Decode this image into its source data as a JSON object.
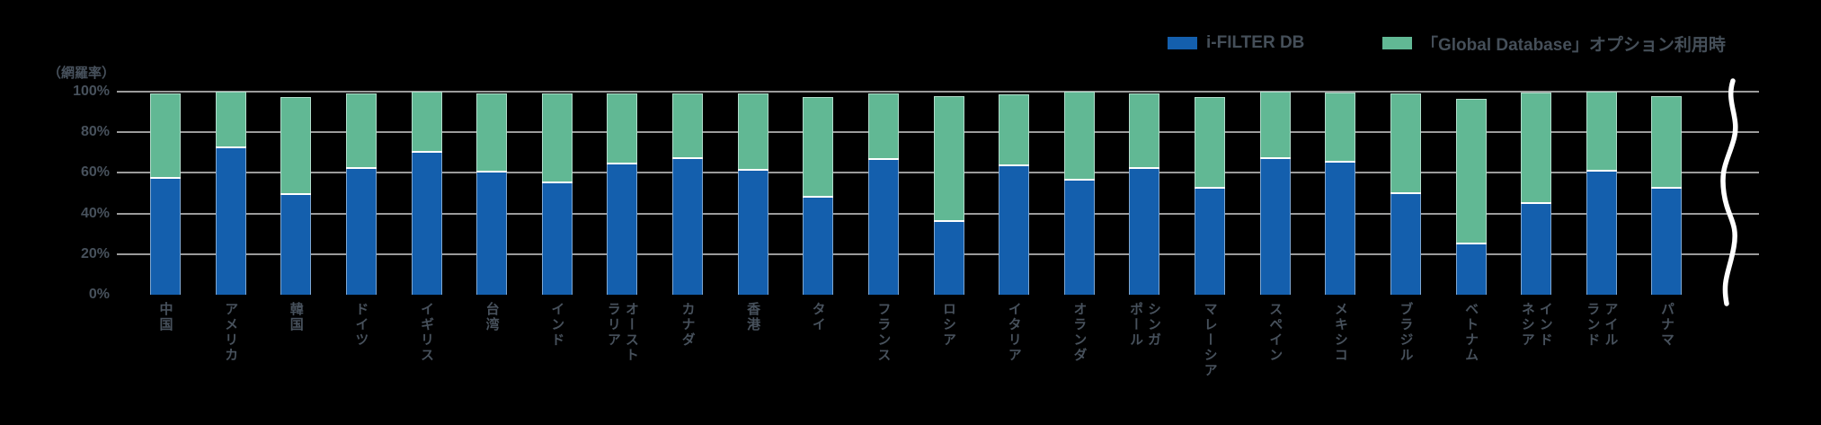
{
  "y_axis_title": "（網羅率）",
  "legend": {
    "items": [
      {
        "label": "i-FILTER DB",
        "color": "#145fad"
      },
      {
        "label": "「Global Database」オプション利用時",
        "color": "#61b894"
      }
    ]
  },
  "colors": {
    "background": "#000000",
    "gridline": "#9b9b9b",
    "text": "#47515c",
    "segment_divider": "#ffffff",
    "break_line": "#ffffff",
    "blue": "#145fad",
    "green": "#61b894"
  },
  "chart_data": {
    "type": "bar",
    "stacked": true,
    "orientation": "vertical",
    "title": "",
    "xlabel": "",
    "ylabel": "（網羅率）",
    "ylim": [
      0,
      100
    ],
    "ytick_labels": [
      "0%",
      "20%",
      "40%",
      "60%",
      "80%",
      "100%"
    ],
    "gridlines_at_percent": [
      20,
      40,
      60,
      80,
      100
    ],
    "grid": true,
    "legend_position": "top-right",
    "axis_break_at_right": true,
    "categories": [
      "中国",
      "アメリカ",
      "韓国",
      "ドイツ",
      "イギリス",
      "台湾",
      "インド",
      "オーストラリア",
      "カナダ",
      "香港",
      "タイ",
      "フランス",
      "ロシア",
      "イタリア",
      "オランダ",
      "シンガポール",
      "マレーシア",
      "スペイン",
      "メキシコ",
      "ブラジル",
      "ベトナム",
      "インドネシア",
      "アイルランド",
      "パナマ"
    ],
    "category_label_columns": [
      [
        "中国"
      ],
      [
        "アメリカ"
      ],
      [
        "韓国"
      ],
      [
        "ドイツ"
      ],
      [
        "イギリス"
      ],
      [
        "台湾"
      ],
      [
        "インド"
      ],
      [
        "オースト",
        "ラリア"
      ],
      [
        "カナダ"
      ],
      [
        "香港"
      ],
      [
        "タイ"
      ],
      [
        "フランス"
      ],
      [
        "ロシア"
      ],
      [
        "イタリア"
      ],
      [
        "オランダ"
      ],
      [
        "シンガ",
        "ポール"
      ],
      [
        "マレーシア"
      ],
      [
        "スペイン"
      ],
      [
        "メキシコ"
      ],
      [
        "ブラジル"
      ],
      [
        "ベトナム"
      ],
      [
        "インド",
        "ネシア"
      ],
      [
        "アイル",
        "ランド"
      ],
      [
        "パナマ"
      ]
    ],
    "series": [
      {
        "name": "i-FILTER DB",
        "color": "#145fad",
        "values": [
          57,
          72,
          49,
          62,
          70,
          60,
          55,
          64,
          67,
          61,
          48,
          66.5,
          36,
          63.5,
          56,
          62,
          52,
          67,
          65,
          49.5,
          25,
          44.5,
          60.5,
          52
        ]
      },
      {
        "name": "「Global Database」オプション利用時",
        "color": "#61b894",
        "values": [
          42,
          28,
          48.5,
          37,
          30,
          39,
          44,
          35,
          32,
          38,
          49.5,
          32.5,
          62,
          35,
          44,
          37,
          45.5,
          33,
          34.5,
          49.5,
          71.5,
          55,
          39.5,
          46
        ]
      }
    ]
  }
}
